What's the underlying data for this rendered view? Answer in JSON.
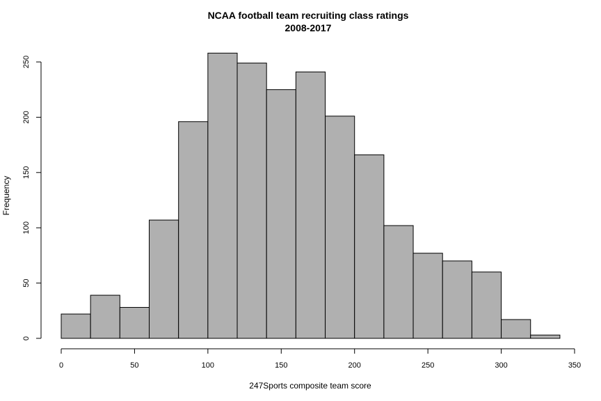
{
  "chart_data": {
    "type": "bar",
    "title": "NCAA football team recruiting class ratings",
    "subtitle": "2008-2017",
    "xlabel": "247Sports composite team score",
    "ylabel": "Frequency",
    "bins": [
      [
        0,
        20
      ],
      [
        20,
        40
      ],
      [
        40,
        60
      ],
      [
        60,
        80
      ],
      [
        80,
        100
      ],
      [
        100,
        120
      ],
      [
        120,
        140
      ],
      [
        140,
        160
      ],
      [
        160,
        180
      ],
      [
        180,
        200
      ],
      [
        200,
        220
      ],
      [
        220,
        240
      ],
      [
        240,
        260
      ],
      [
        260,
        280
      ],
      [
        280,
        300
      ],
      [
        300,
        320
      ],
      [
        320,
        340
      ]
    ],
    "values": [
      22,
      39,
      28,
      107,
      196,
      258,
      249,
      225,
      241,
      201,
      166,
      102,
      77,
      70,
      60,
      17,
      3
    ],
    "xlim": [
      0,
      350
    ],
    "ylim": [
      0,
      250
    ],
    "x_ticks": [
      "0",
      "50",
      "100",
      "150",
      "200",
      "250",
      "300",
      "350"
    ],
    "y_ticks": [
      "0",
      "50",
      "100",
      "150",
      "200",
      "250"
    ],
    "grid": false,
    "bar_color": "#b0b0b0",
    "edge_color": "#000000"
  }
}
